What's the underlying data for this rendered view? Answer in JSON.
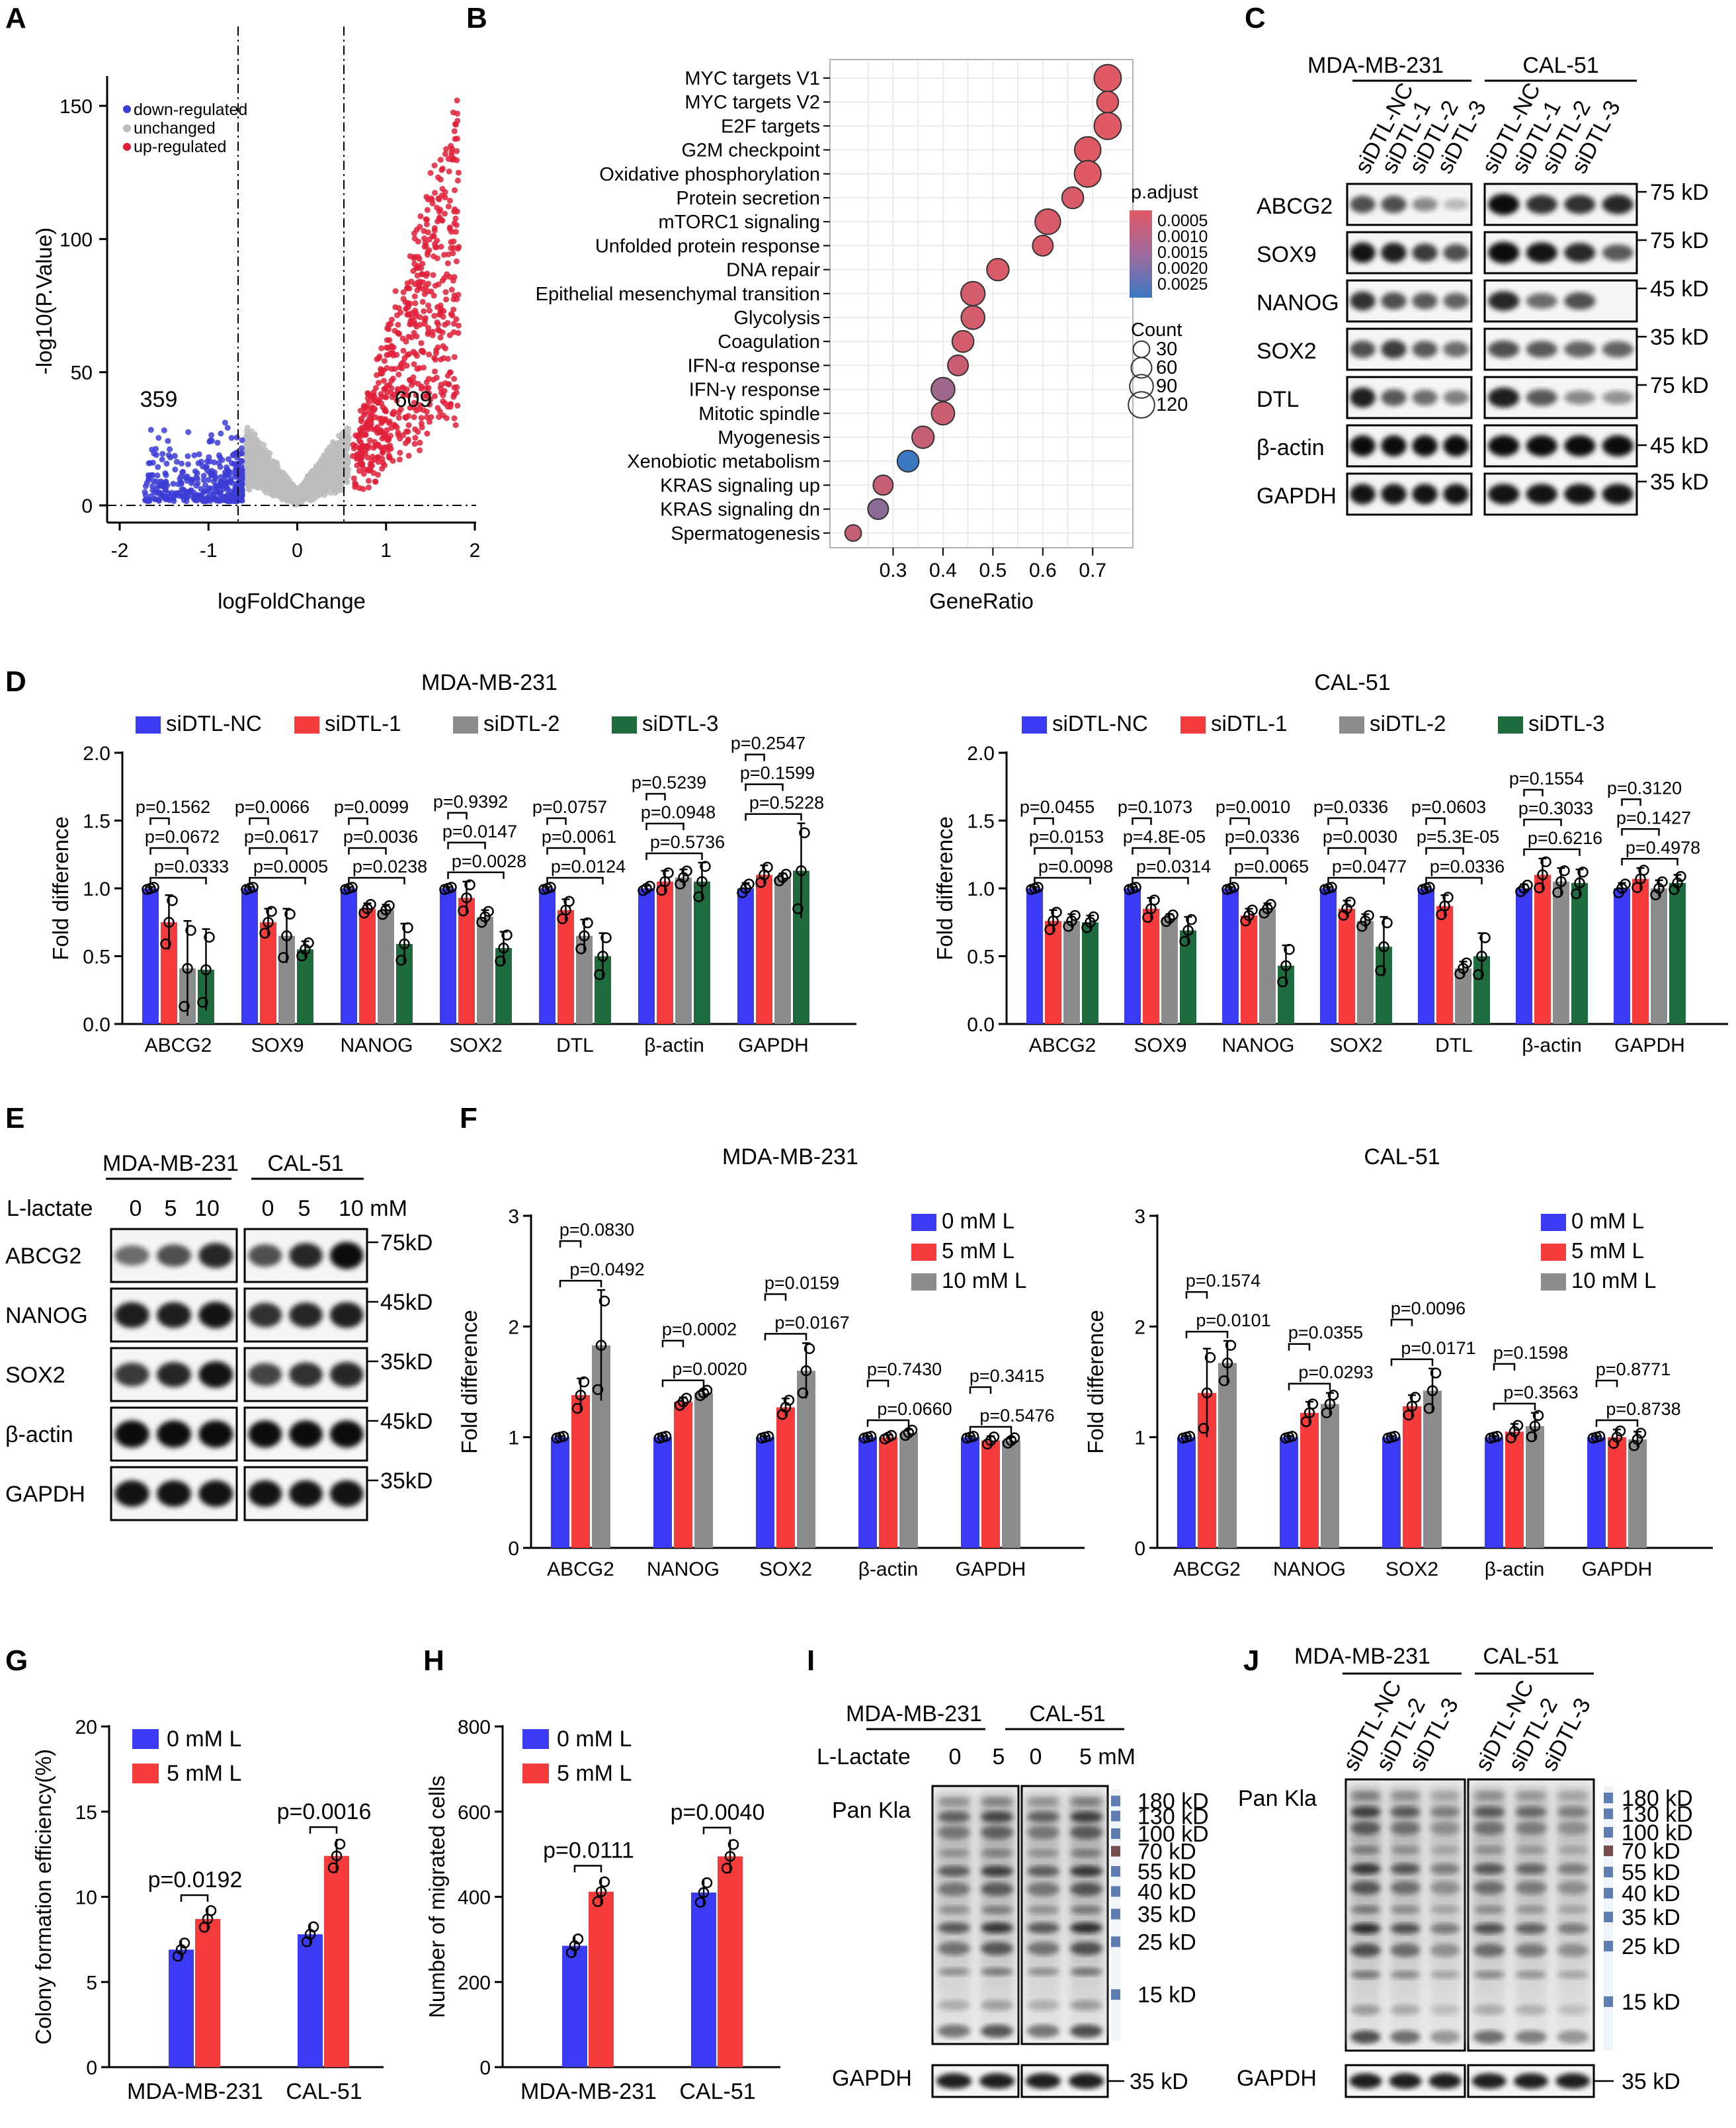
{
  "colors": {
    "blue": "#3b3bf5",
    "red": "#f53b3b",
    "gray": "#8c8c8c",
    "green": "#1e6b3e",
    "volcano_down": "#3d3dd6",
    "volcano_up": "#e0203a",
    "volcano_unchanged": "#bdbdbd"
  },
  "panels": {
    "A": {
      "label": "A",
      "chart_data": {
        "type": "scatter",
        "title": "",
        "xlabel": "logFoldChange",
        "ylabel": "-log10(P.Value)",
        "xlim": [
          -2,
          2
        ],
        "ylim": [
          0,
          155
        ],
        "xticks": [
          "-2",
          "-1",
          "0",
          "1",
          "2"
        ],
        "yticks": [
          "0",
          "50",
          "100",
          "150"
        ],
        "legend": [
          "down-regulated",
          "unchanged",
          "up-regulated"
        ],
        "fc_thresholds": [
          -0.58,
          0.58
        ],
        "p_threshold": 1.3,
        "annotations": {
          "down_count": "359",
          "up_count": "609"
        }
      }
    },
    "B": {
      "label": "B",
      "chart_data": {
        "type": "scatter",
        "xlabel": "GeneRatio",
        "xlim": [
          0.2,
          0.75
        ],
        "xticks": [
          "0.3",
          "0.4",
          "0.5",
          "0.6",
          "0.7"
        ],
        "terms": [
          "MYC targets V1",
          "MYC targets V2",
          "E2F targets",
          "G2M checkpoint",
          "Oxidative phosphorylation",
          "Protein secretion",
          "mTORC1 signaling",
          "Unfolded protein response",
          "DNA repair",
          "Epithelial mesenchymal transition",
          "Glycolysis",
          "Coagulation",
          "IFN-α response",
          "IFN-γ response",
          "Mitotic spindle",
          "Myogenesis",
          "Xenobiotic metabolism",
          "KRAS signaling up",
          "KRAS signaling dn",
          "Spermatogenesis"
        ],
        "gene_ratio": [
          0.73,
          0.73,
          0.73,
          0.69,
          0.69,
          0.66,
          0.61,
          0.6,
          0.51,
          0.46,
          0.46,
          0.44,
          0.43,
          0.4,
          0.4,
          0.36,
          0.33,
          0.28,
          0.27,
          0.22
        ],
        "count": [
          130,
          70,
          130,
          120,
          125,
          70,
          110,
          60,
          75,
          95,
          90,
          70,
          60,
          90,
          85,
          75,
          70,
          55,
          60,
          30
        ],
        "p_adjust": [
          0.0003,
          0.0003,
          0.0003,
          0.0003,
          0.0003,
          0.0004,
          0.0004,
          0.0004,
          0.0004,
          0.0005,
          0.0005,
          0.0005,
          0.0006,
          0.0013,
          0.0006,
          0.0007,
          0.0028,
          0.0007,
          0.0016,
          0.0007
        ],
        "legend": {
          "color_title": "p.adjust",
          "color_ticks": [
            "0.0005",
            "0.0010",
            "0.0015",
            "0.0020",
            "0.0025"
          ],
          "size_title": "Count",
          "size_ticks": [
            "30",
            "60",
            "90",
            "120"
          ]
        }
      }
    },
    "C": {
      "label": "C",
      "groups": [
        "MDA-MB-231",
        "CAL-51"
      ],
      "lanes": [
        "siDTL-NC",
        "siDTL-1",
        "siDTL-2",
        "siDTL-3"
      ],
      "proteins": [
        "ABCG2",
        "SOX9",
        "NANOG",
        "SOX2",
        "DTL",
        "β-actin",
        "GAPDH"
      ],
      "sizes": [
        "75 kD",
        "75 kD",
        "45 kD",
        "35 kD",
        "75 kD",
        "45 kD",
        "35 kD"
      ]
    },
    "D": {
      "label": "D",
      "chart_data": [
        {
          "type": "bar",
          "title": "MDA-MB-231",
          "ylabel": "Fold difference",
          "ylim": [
            0,
            2.0
          ],
          "yticks": [
            "0.0",
            "0.5",
            "1.0",
            "1.5",
            "2.0"
          ],
          "categories": [
            "ABCG2",
            "SOX9",
            "NANOG",
            "SOX2",
            "DTL",
            "β-actin",
            "GAPDH"
          ],
          "series": [
            {
              "name": "siDTL-NC",
              "values": [
                1.0,
                1.0,
                1.0,
                1.0,
                1.0,
                1.0,
                1.0
              ],
              "err": [
                0.01,
                0.01,
                0.01,
                0.01,
                0.01,
                0.02,
                0.04
              ]
            },
            {
              "name": "siDTL-1",
              "values": [
                0.75,
                0.75,
                0.85,
                0.93,
                0.84,
                1.05,
                1.1
              ],
              "err": [
                0.2,
                0.1,
                0.04,
                0.12,
                0.08,
                0.08,
                0.07
              ]
            },
            {
              "name": "siDTL-2",
              "values": [
                0.41,
                0.65,
                0.84,
                0.79,
                0.65,
                1.08,
                1.08
              ],
              "err": [
                0.35,
                0.2,
                0.04,
                0.05,
                0.12,
                0.06,
                0.03
              ]
            },
            {
              "name": "siDTL-3",
              "values": [
                0.4,
                0.55,
                0.59,
                0.56,
                0.5,
                1.05,
                1.13
              ],
              "err": [
                0.3,
                0.06,
                0.15,
                0.12,
                0.17,
                0.14,
                0.35
              ]
            }
          ],
          "pvalues": [
            [
              "p=0.0333",
              "p=0.0672",
              "p=0.1562"
            ],
            [
              "p=0.0005",
              "p=0.0617",
              "p=0.0066"
            ],
            [
              "p=0.0238",
              "p=0.0036",
              "p=0.0099"
            ],
            [
              "p=0.0028",
              "p=0.0147",
              "p=0.9392"
            ],
            [
              "p=0.0124",
              "p=0.0061",
              "p=0.0757"
            ],
            [
              "p=0.5736",
              "p=0.0948",
              "p=0.5239"
            ],
            [
              "p=0.5228",
              "p=0.1599",
              "p=0.2547"
            ]
          ]
        },
        {
          "type": "bar",
          "title": "CAL-51",
          "ylabel": "Fold difference",
          "ylim": [
            0,
            2.0
          ],
          "yticks": [
            "0.0",
            "0.5",
            "1.0",
            "1.5",
            "2.0"
          ],
          "categories": [
            "ABCG2",
            "SOX9",
            "NANOG",
            "SOX2",
            "DTL",
            "β-actin",
            "GAPDH"
          ],
          "series": [
            {
              "name": "siDTL-NC",
              "values": [
                1.0,
                1.0,
                1.0,
                1.0,
                1.0,
                1.0,
                1.0
              ],
              "err": [
                0.01,
                0.01,
                0.01,
                0.01,
                0.01,
                0.03,
                0.04
              ]
            },
            {
              "name": "siDTL-1",
              "values": [
                0.76,
                0.85,
                0.8,
                0.85,
                0.87,
                1.1,
                1.07
              ],
              "err": [
                0.08,
                0.08,
                0.05,
                0.06,
                0.08,
                0.12,
                0.08
              ]
            },
            {
              "name": "siDTL-2",
              "values": [
                0.76,
                0.78,
                0.85,
                0.76,
                0.41,
                1.05,
                1.0
              ],
              "err": [
                0.05,
                0.03,
                0.04,
                0.05,
                0.05,
                0.1,
                0.06
              ]
            },
            {
              "name": "siDTL-3",
              "values": [
                0.75,
                0.69,
                0.43,
                0.57,
                0.5,
                1.04,
                1.04
              ],
              "err": [
                0.05,
                0.1,
                0.15,
                0.22,
                0.17,
                0.1,
                0.06
              ]
            }
          ],
          "pvalues": [
            [
              "p=0.0098",
              "p=0.0153",
              "p=0.0455"
            ],
            [
              "p=0.0314",
              "p=4.8E-05",
              "p=0.1073"
            ],
            [
              "p=0.0065",
              "p=0.0336",
              "p=0.0010"
            ],
            [
              "p=0.0477",
              "p=0.0030",
              "p=0.0336"
            ],
            [
              "p=0.0336",
              "p=5.3E-05",
              "p=0.0603"
            ],
            [
              "p=0.6216",
              "p=0.3033",
              "p=0.1554"
            ],
            [
              "p=0.4978",
              "p=0.1427",
              "p=0.3120"
            ]
          ]
        }
      ]
    },
    "E": {
      "label": "E",
      "groups": [
        "MDA-MB-231",
        "CAL-51"
      ],
      "treatment_label": "L-lactate",
      "doses": [
        "0",
        "5",
        "10",
        "0",
        "5",
        "10 mM"
      ],
      "proteins": [
        "ABCG2",
        "NANOG",
        "SOX2",
        "β-actin",
        "GAPDH"
      ],
      "sizes": [
        "75kD",
        "45kD",
        "35kD",
        "45kD",
        "35kD"
      ]
    },
    "F": {
      "label": "F",
      "chart_data": [
        {
          "type": "bar",
          "title": "MDA-MB-231",
          "ylabel": "Fold difference",
          "ylim": [
            0,
            3
          ],
          "yticks": [
            "0",
            "1",
            "2",
            "3"
          ],
          "categories": [
            "ABCG2",
            "NANOG",
            "SOX2",
            "β-actin",
            "GAPDH"
          ],
          "series": [
            {
              "name": "0 mM L",
              "values": [
                1.0,
                1.0,
                1.0,
                1.0,
                1.0
              ],
              "err": [
                0.01,
                0.01,
                0.01,
                0.01,
                0.01
              ]
            },
            {
              "name": "5 mM L",
              "values": [
                1.38,
                1.32,
                1.27,
                1.0,
                0.97
              ],
              "err": [
                0.15,
                0.04,
                0.08,
                0.02,
                0.04
              ]
            },
            {
              "name": "10 mM L",
              "values": [
                1.83,
                1.4,
                1.6,
                1.04,
                0.97
              ],
              "err": [
                0.5,
                0.03,
                0.25,
                0.03,
                0.03
              ]
            }
          ],
          "pvalues": [
            [
              "p=0.0492",
              "p=0.0830"
            ],
            [
              "p=0.0020",
              "p=0.0002"
            ],
            [
              "p=0.0167",
              "p=0.0159"
            ],
            [
              "p=0.0660",
              "p=0.7430"
            ],
            [
              "p=0.5476",
              "p=0.3415"
            ]
          ]
        },
        {
          "type": "bar",
          "title": "CAL-51",
          "ylabel": "Fold difference",
          "ylim": [
            0,
            3
          ],
          "yticks": [
            "0",
            "1",
            "2",
            "3"
          ],
          "categories": [
            "ABCG2",
            "NANOG",
            "SOX2",
            "β-actin",
            "GAPDH"
          ],
          "series": [
            {
              "name": "0 mM L",
              "values": [
                1.0,
                1.0,
                1.0,
                1.0,
                1.0
              ],
              "err": [
                0.01,
                0.01,
                0.01,
                0.01,
                0.01
              ]
            },
            {
              "name": "5 mM L",
              "values": [
                1.4,
                1.22,
                1.28,
                1.05,
                1.0
              ],
              "err": [
                0.4,
                0.1,
                0.1,
                0.07,
                0.07
              ]
            },
            {
              "name": "10 mM L",
              "values": [
                1.67,
                1.3,
                1.42,
                1.1,
                0.98
              ],
              "err": [
                0.2,
                0.1,
                0.2,
                0.12,
                0.07
              ]
            }
          ],
          "pvalues": [
            [
              "p=0.0101",
              "p=0.1574"
            ],
            [
              "p=0.0293",
              "p=0.0355"
            ],
            [
              "p=0.0171",
              "p=0.0096"
            ],
            [
              "p=0.3563",
              "p=0.1598"
            ],
            [
              "p=0.8738",
              "p=0.8771"
            ]
          ]
        }
      ]
    },
    "G": {
      "label": "G",
      "chart_data": {
        "type": "bar",
        "ylabel": "Colony formation efficiency(%)",
        "ylim": [
          0,
          20
        ],
        "yticks": [
          "0",
          "5",
          "10",
          "15",
          "20"
        ],
        "categories": [
          "MDA-MB-231",
          "CAL-51"
        ],
        "series": [
          {
            "name": "0 mM L",
            "values": [
              6.9,
              7.8
            ]
          },
          {
            "name": "5 mM L",
            "values": [
              8.7,
              12.4
            ]
          }
        ],
        "pvalues": [
          "p=0.0192",
          "p=0.0016"
        ]
      }
    },
    "H": {
      "label": "H",
      "chart_data": {
        "type": "bar",
        "ylabel": "Number of migrated cells",
        "ylim": [
          0,
          800
        ],
        "yticks": [
          "0",
          "200",
          "400",
          "600",
          "800"
        ],
        "categories": [
          "MDA-MB-231",
          "CAL-51"
        ],
        "series": [
          {
            "name": "0 mM L",
            "values": [
              285,
              410
            ]
          },
          {
            "name": "5 mM L",
            "values": [
              412,
              495
            ]
          }
        ],
        "pvalues": [
          "p=0.0111",
          "p=0.0040"
        ]
      }
    },
    "I": {
      "label": "I",
      "groups": [
        "MDA-MB-231",
        "CAL-51"
      ],
      "treatment_label": "L-Lactate",
      "doses": [
        "0",
        "5",
        "0",
        "5 mM"
      ],
      "pan_label": "Pan Kla",
      "gapdh_label": "GAPDH",
      "ladder": [
        "180 kD",
        "130 kD",
        "100 kD",
        "70 kD",
        "55 kD",
        "40 kD",
        "35 kD",
        "25 kD",
        "15 kD"
      ],
      "gapdh_size": "35 kD"
    },
    "J": {
      "label": "J",
      "groups": [
        "MDA-MB-231",
        "CAL-51"
      ],
      "lanes": [
        "siDTL-NC",
        "siDTL-2",
        "siDTL-3"
      ],
      "pan_label": "Pan Kla",
      "gapdh_label": "GAPDH",
      "ladder": [
        "180 kD",
        "130 kD",
        "100 kD",
        "70 kD",
        "55 kD",
        "40 kD",
        "35 kD",
        "25 kD",
        "15 kD"
      ],
      "gapdh_size": "35 kD"
    }
  }
}
